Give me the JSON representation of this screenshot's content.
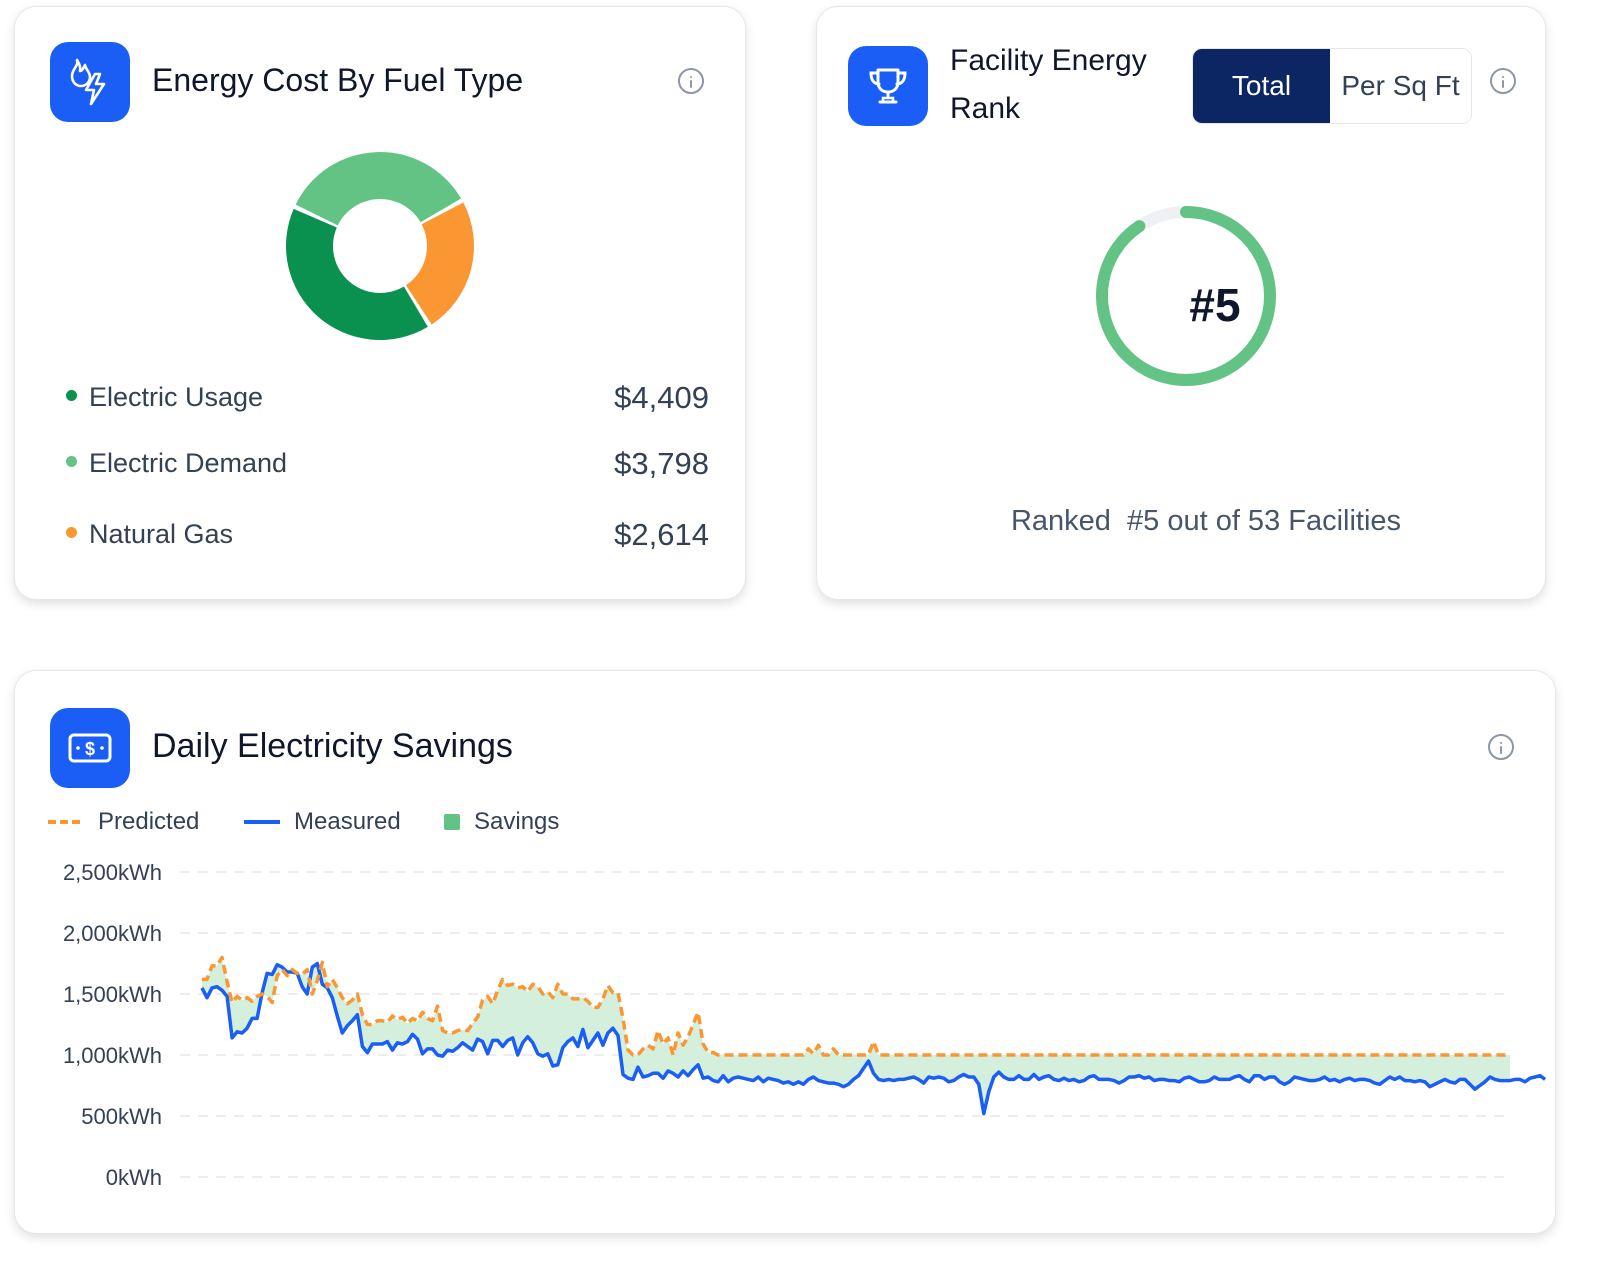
{
  "fuel_card": {
    "title": "Energy Cost By Fuel Type",
    "icon": "flame-lightning-icon",
    "items": [
      {
        "label": "Electric Usage",
        "value": "$4,409",
        "color": "#0a9150"
      },
      {
        "label": "Electric Demand",
        "value": "$3,798",
        "color": "#63c384"
      },
      {
        "label": "Natural Gas",
        "value": "$2,614",
        "color": "#fb9733"
      }
    ]
  },
  "rank_card": {
    "title_line1": "Facility Energy",
    "title_line2": "Rank",
    "icon": "trophy-icon",
    "toggle": {
      "total": "Total",
      "per_sq_ft": "Per Sq Ft",
      "selected": "Total"
    },
    "rank": "#5",
    "rank_fraction": 0.906,
    "caption": "Ranked  #5 out of 53 Facilities",
    "ring_color": "#63c384"
  },
  "savings_card": {
    "title": "Daily Electricity Savings",
    "icon": "money-bill-icon",
    "legend": {
      "predicted": "Predicted",
      "measured": "Measured",
      "savings": "Savings"
    }
  },
  "colors": {
    "accent": "#1a5ef5",
    "navy": "#0c2563",
    "predicted": "#fb9733",
    "measured": "#1a5ef5",
    "savings": "#d4efdc"
  },
  "chart_data": [
    {
      "type": "pie",
      "labels": [
        "Electric Usage",
        "Electric Demand",
        "Natural Gas"
      ],
      "values": [
        4409,
        3798,
        2614
      ],
      "colors": [
        "#0a9150",
        "#63c384",
        "#fb9733"
      ]
    },
    {
      "type": "line",
      "title": "Daily Electricity Savings",
      "y_ticks": [
        "2,500kWh",
        "2,000kWh",
        "1,500kWh",
        "1,000kWh",
        "500kWh",
        "0kWh"
      ],
      "ylim": [
        0,
        2500
      ],
      "grid": true,
      "legend_position": "top-left",
      "series": [
        {
          "name": "Predicted",
          "values": [
            1620,
            1620,
            1730,
            1730,
            1800,
            1600,
            1430,
            1480,
            1450,
            1470,
            1440,
            1480,
            1500,
            1480,
            1430,
            1650,
            1700,
            1650,
            1700,
            1670,
            1660,
            1700,
            1500,
            1610,
            1760,
            1560,
            1620,
            1550,
            1470,
            1420,
            1450,
            1500,
            1330,
            1250,
            1250,
            1280,
            1280,
            1270,
            1320,
            1290,
            1310,
            1260,
            1300,
            1280,
            1350,
            1300,
            1280,
            1400,
            1200,
            1180,
            1180,
            1200,
            1210,
            1200,
            1260,
            1310,
            1450,
            1480,
            1420,
            1530,
            1620,
            1570,
            1580,
            1550,
            1560,
            1520,
            1580,
            1560,
            1500,
            1520,
            1470,
            1580,
            1500,
            1500,
            1460,
            1460,
            1470,
            1440,
            1390,
            1390,
            1460,
            1570,
            1510,
            1510,
            1300,
            1040,
            1000,
            1000,
            1050,
            1080,
            1050,
            1200,
            1090,
            1140,
            1000,
            1180,
            1080,
            1150,
            1250,
            1350,
            1090,
            1020,
            1020,
            1000,
            1000,
            1000,
            1000,
            1000,
            1000,
            1000,
            1000,
            1000,
            1000,
            1000,
            1000,
            1000,
            1000,
            1000,
            1000,
            1000,
            1000,
            1050,
            1010,
            1080,
            1000,
            1000,
            1050,
            1000,
            1000,
            1000,
            1000,
            1000,
            1000,
            1000,
            1110,
            1000,
            1000,
            1000,
            1000,
            1000,
            1000,
            1000,
            1000,
            1000,
            1000,
            1000,
            1000,
            1000,
            1000,
            1000,
            1000,
            1000,
            1000,
            1000,
            1000,
            1000,
            1000,
            1000,
            1000,
            1000,
            1000,
            1000,
            1000,
            1000,
            1000,
            1000,
            1000,
            1000,
            1000,
            1000,
            1000,
            1000,
            1000,
            1000,
            1000,
            1000,
            1000,
            1000,
            1000,
            1000,
            1000,
            1000,
            1000,
            1000,
            1000,
            1000,
            1000,
            1000,
            1000,
            1000,
            1000,
            1000,
            1000,
            1000,
            1000,
            1000,
            1000,
            1000,
            1000,
            1000,
            1000,
            1000,
            1000,
            1000,
            1000,
            1000,
            1000,
            1000,
            1000,
            1000,
            1000,
            1000,
            1000,
            1000,
            1000,
            1000,
            1000,
            1000,
            1000,
            1000,
            1000,
            1000,
            1000,
            1000,
            1000,
            1000,
            1000,
            1000,
            1000,
            1000,
            1000,
            1000,
            1000,
            1000,
            1000,
            1000,
            1000,
            1000,
            1000,
            1000,
            1000,
            1000,
            1000,
            1000,
            1000,
            1000,
            1000,
            1000,
            1000,
            1000,
            1000,
            1000,
            1000,
            1000,
            1000,
            1000,
            1000,
            1000,
            1000,
            1000,
            1000,
            1000
          ]
        },
        {
          "name": "Measured",
          "values": [
            1550,
            1470,
            1550,
            1560,
            1530,
            1480,
            1140,
            1190,
            1180,
            1220,
            1300,
            1300,
            1510,
            1670,
            1660,
            1740,
            1720,
            1680,
            1680,
            1670,
            1560,
            1500,
            1720,
            1750,
            1580,
            1550,
            1470,
            1320,
            1180,
            1240,
            1280,
            1330,
            1070,
            1020,
            1090,
            1090,
            1090,
            1110,
            1040,
            1100,
            1090,
            1110,
            1170,
            1130,
            1010,
            1050,
            1050,
            1000,
            990,
            1040,
            1030,
            1060,
            1100,
            1070,
            1040,
            1130,
            1110,
            1010,
            1120,
            1120,
            1070,
            1120,
            1140,
            1000,
            1100,
            1150,
            1100,
            1010,
            990,
            1010,
            910,
            920,
            1060,
            1110,
            1140,
            1070,
            1210,
            1060,
            1120,
            1180,
            1080,
            1180,
            1220,
            1160,
            840,
            810,
            800,
            900,
            820,
            830,
            850,
            850,
            810,
            870,
            850,
            820,
            870,
            830,
            880,
            920,
            810,
            820,
            790,
            780,
            830,
            780,
            810,
            820,
            810,
            800,
            790,
            820,
            780,
            810,
            800,
            790,
            770,
            780,
            760,
            780,
            760,
            800,
            820,
            790,
            780,
            770,
            770,
            760,
            740,
            760,
            800,
            830,
            890,
            950,
            850,
            800,
            790,
            800,
            790,
            800,
            800,
            810,
            820,
            800,
            770,
            820,
            810,
            820,
            810,
            780,
            790,
            820,
            840,
            820,
            820,
            760,
            520,
            700,
            820,
            860,
            820,
            800,
            800,
            830,
            800,
            800,
            840,
            800,
            820,
            830,
            800,
            790,
            810,
            790,
            800,
            780,
            790,
            820,
            830,
            800,
            800,
            800,
            790,
            770,
            790,
            820,
            820,
            830,
            810,
            820,
            790,
            800,
            800,
            790,
            790,
            780,
            810,
            820,
            800,
            780,
            780,
            790,
            820,
            800,
            800,
            800,
            820,
            830,
            800,
            780,
            830,
            830,
            800,
            820,
            820,
            780,
            760,
            780,
            820,
            810,
            800,
            790,
            790,
            800,
            820,
            790,
            800,
            780,
            800,
            810,
            790,
            800,
            800,
            790,
            770,
            760,
            790,
            820,
            800,
            820,
            790,
            790,
            780,
            790,
            780,
            740,
            760,
            780,
            800,
            780,
            770,
            800,
            800,
            760,
            720,
            750,
            780,
            820,
            800,
            790,
            790,
            790,
            800,
            800,
            780,
            810,
            820,
            830,
            800
          ]
        }
      ]
    }
  ]
}
